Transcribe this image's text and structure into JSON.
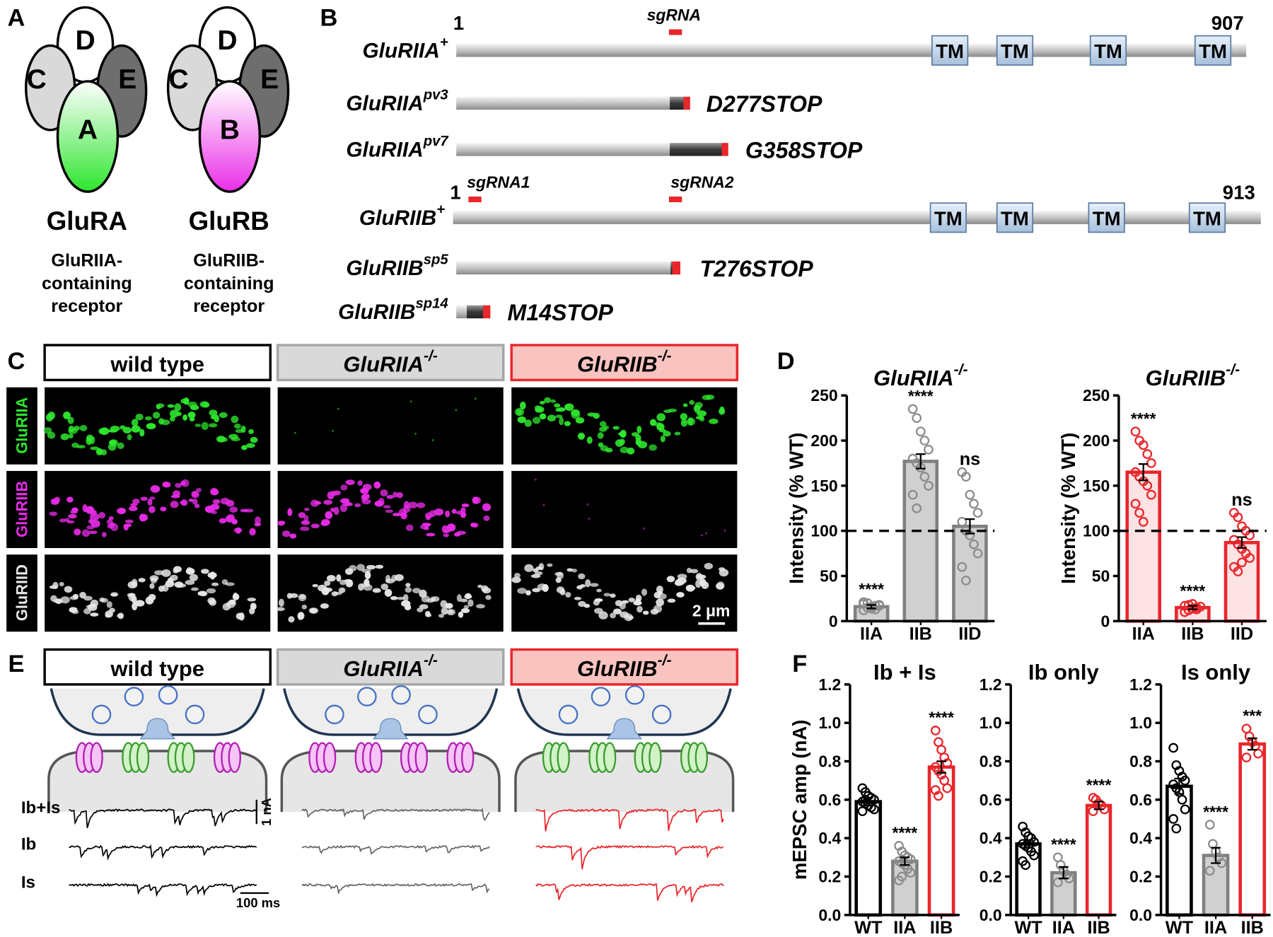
{
  "panel_labels": [
    "A",
    "B",
    "C",
    "D",
    "E",
    "F"
  ],
  "panel_a": {
    "receptors": [
      {
        "subunits": [
          "C",
          "D",
          "E",
          "A"
        ],
        "name": "GluRA",
        "description": [
          "GluRIIA-",
          "containing",
          "receptor"
        ]
      },
      {
        "subunits": [
          "C",
          "D",
          "E",
          "B"
        ],
        "name": "GluRB",
        "description": [
          "GluRIIB-",
          "containing",
          "receptor"
        ]
      }
    ]
  },
  "panel_b": {
    "domain_label": "TM",
    "constructs": [
      {
        "name": "GluRIIA",
        "sup": "+",
        "start": "1",
        "end": "907",
        "guides": [
          "sgRNA"
        ]
      },
      {
        "name": "GluRIIA",
        "sup": "pv3",
        "mutation": "D277STOP"
      },
      {
        "name": "GluRIIA",
        "sup": "pv7",
        "mutation": "G358STOP"
      },
      {
        "name": "GluRIIB",
        "sup": "+",
        "start": "1",
        "end": "913",
        "guides": [
          "sgRNA1",
          "sgRNA2"
        ]
      },
      {
        "name": "GluRIIB",
        "sup": "sp5",
        "mutation": "T276STOP"
      },
      {
        "name": "GluRIIB",
        "sup": "sp14",
        "mutation": "M14STOP"
      }
    ]
  },
  "genotypes": [
    {
      "text": "wild type"
    },
    {
      "text": "GluRIIA",
      "sup": "-/-"
    },
    {
      "text": "GluRIIB",
      "sup": "-/-"
    }
  ],
  "panel_c": {
    "stains": [
      "GluRIIA",
      "GluRIIB",
      "GluRIID"
    ],
    "scale_bar": "2 μm"
  },
  "panel_e": {
    "traces": [
      "Ib+Is",
      "Ib",
      "Is"
    ],
    "current_scale": "1 nA",
    "time_scale": "100 ms"
  },
  "chart_data": [
    {
      "type": "bar",
      "title": {
        "text": "GluRIIA",
        "sup": "-/-"
      },
      "ylabel": "Intensity (% WT)",
      "categories": [
        "IIA",
        "IIB",
        "IID"
      ],
      "values": [
        16,
        177,
        105
      ],
      "errors": [
        2,
        8,
        8
      ],
      "points": [
        [
          12,
          15,
          16,
          17,
          18,
          19,
          20,
          14,
          13,
          17,
          21
        ],
        [
          235,
          225,
          210,
          200,
          190,
          180,
          175,
          170,
          160,
          150,
          140,
          125
        ],
        [
          165,
          160,
          140,
          130,
          120,
          110,
          100,
          95,
          85,
          75,
          60,
          45
        ]
      ],
      "significance": [
        "****",
        "****",
        "ns"
      ],
      "fills": [
        "#d0d0d0",
        "#d0d0d0",
        "#d0d0d0"
      ],
      "edges": [
        "#808080",
        "#808080",
        "#808080"
      ],
      "reference_line": 100,
      "ylim": [
        0,
        250
      ],
      "yticks": [
        0,
        50,
        100,
        150,
        200,
        250
      ]
    },
    {
      "type": "bar",
      "title": {
        "text": "GluRIIB",
        "sup": "-/-"
      },
      "ylabel": "Intensity (% WT)",
      "categories": [
        "IIA",
        "IIB",
        "IID"
      ],
      "values": [
        165,
        15,
        87
      ],
      "errors": [
        9,
        2,
        6
      ],
      "points": [
        [
          210,
          200,
          195,
          185,
          175,
          165,
          160,
          155,
          150,
          140,
          130,
          120,
          110
        ],
        [
          10,
          12,
          14,
          15,
          16,
          17,
          18,
          19,
          13
        ],
        [
          120,
          115,
          105,
          100,
          95,
          90,
          85,
          80,
          75,
          70,
          60,
          55,
          65
        ]
      ],
      "significance": [
        "****",
        "****",
        "ns"
      ],
      "fills": [
        "#fde3e3",
        "#fde3e3",
        "#fde3e3"
      ],
      "edges": [
        "#e8262b",
        "#e8262b",
        "#e8262b"
      ],
      "reference_line": 100,
      "ylim": [
        0,
        250
      ],
      "yticks": [
        0,
        50,
        100,
        150,
        200,
        250
      ]
    },
    {
      "type": "bar",
      "title": "Ib + Is",
      "ylabel": "mEPSC amp (nA)",
      "categories": [
        "WT",
        "IIA",
        "IIB"
      ],
      "values": [
        0.59,
        0.28,
        0.77
      ],
      "errors": [
        0.02,
        0.02,
        0.03
      ],
      "points": [
        [
          0.66,
          0.64,
          0.62,
          0.61,
          0.6,
          0.59,
          0.58,
          0.57,
          0.56,
          0.55,
          0.54,
          0.6
        ],
        [
          0.36,
          0.33,
          0.31,
          0.3,
          0.29,
          0.28,
          0.27,
          0.26,
          0.24,
          0.22,
          0.18,
          0.2
        ],
        [
          0.96,
          0.9,
          0.86,
          0.82,
          0.79,
          0.77,
          0.75,
          0.73,
          0.7,
          0.66,
          0.65,
          0.62
        ]
      ],
      "significance": [
        null,
        "****",
        "****"
      ],
      "fills": [
        "#ffffff",
        "#d0d0d0",
        "#ffffff"
      ],
      "edges": [
        "#000000",
        "#808080",
        "#e8262b"
      ],
      "ylim": [
        0,
        1.2
      ],
      "yticks": [
        {
          "value": 0,
          "label": "0.0"
        },
        0.2,
        0.4,
        0.6,
        0.8,
        {
          "value": 1,
          "label": "1.0"
        },
        1.2
      ]
    },
    {
      "type": "bar",
      "title": "Ib only",
      "categories": [
        "WT",
        "IIA",
        "IIB"
      ],
      "values": [
        0.37,
        0.22,
        0.57
      ],
      "errors": [
        0.02,
        0.03,
        0.02
      ],
      "points": [
        [
          0.46,
          0.43,
          0.41,
          0.4,
          0.38,
          0.37,
          0.36,
          0.35,
          0.33,
          0.31,
          0.28,
          0.26
        ],
        [
          0.3,
          0.26,
          0.23,
          0.21,
          0.19,
          0.17
        ],
        [
          0.61,
          0.6,
          0.58,
          0.57,
          0.55,
          0.54
        ]
      ],
      "significance": [
        null,
        "****",
        "****"
      ],
      "fills": [
        "#ffffff",
        "#d0d0d0",
        "#ffffff"
      ],
      "edges": [
        "#000000",
        "#808080",
        "#e8262b"
      ],
      "ylim": [
        0,
        1.2
      ],
      "yticks": [
        {
          "value": 0,
          "label": "0.0"
        },
        0.2,
        0.4,
        0.6,
        0.8,
        {
          "value": 1,
          "label": "1.0"
        },
        1.2
      ]
    },
    {
      "type": "bar",
      "title": "Is only",
      "categories": [
        "WT",
        "IIA",
        "IIB"
      ],
      "values": [
        0.67,
        0.31,
        0.89
      ],
      "errors": [
        0.04,
        0.04,
        0.03
      ],
      "points": [
        [
          0.87,
          0.78,
          0.75,
          0.72,
          0.7,
          0.68,
          0.66,
          0.64,
          0.6,
          0.55,
          0.5,
          0.45
        ],
        [
          0.47,
          0.37,
          0.33,
          0.3,
          0.27,
          0.23
        ],
        [
          0.97,
          0.93,
          0.9,
          0.88,
          0.84,
          0.82
        ]
      ],
      "significance": [
        null,
        "****",
        "***"
      ],
      "fills": [
        "#ffffff",
        "#d0d0d0",
        "#ffffff"
      ],
      "edges": [
        "#000000",
        "#808080",
        "#e8262b"
      ],
      "ylim": [
        0,
        1.2
      ],
      "yticks": [
        {
          "value": 0,
          "label": "0.0"
        },
        0.2,
        0.4,
        0.6,
        0.8,
        {
          "value": 1,
          "label": "1.0"
        },
        1.2
      ]
    }
  ]
}
